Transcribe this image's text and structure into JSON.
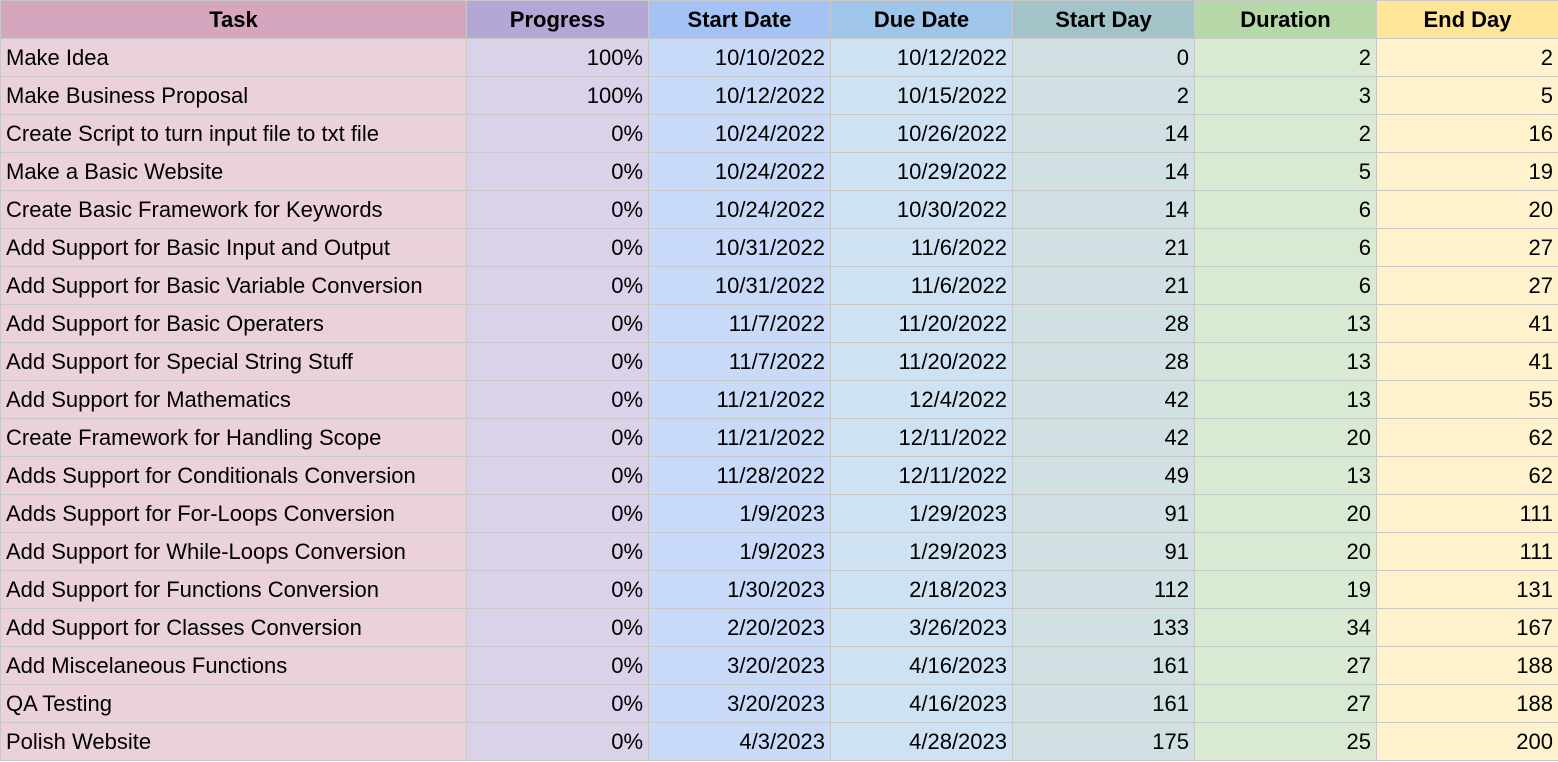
{
  "colors": {
    "task_header": "#d5a6bd",
    "progress_header": "#b4a7d6",
    "start_date_header": "#a4c2f4",
    "due_date_header": "#9fc5e8",
    "start_day_header": "#a2c4c9",
    "duration_header": "#b6d7a8",
    "end_day_header": "#ffe599",
    "task_cells": "#ead1dc",
    "progress_cells": "#d9d2e9",
    "start_date_cells": "#c9daf8",
    "due_date_cells": "#cfe2f3",
    "start_day_cells": "#d0e0e3",
    "duration_cells": "#d9ead3",
    "end_day_cells": "#fff2cc"
  },
  "headers": [
    "Task",
    "Progress",
    "Start Date",
    "Due Date",
    "Start Day",
    "Duration",
    "End Day"
  ],
  "rows": [
    [
      "Make Idea",
      "100%",
      "10/10/2022",
      "10/12/2022",
      "0",
      "2",
      "2"
    ],
    [
      "Make Business Proposal",
      "100%",
      "10/12/2022",
      "10/15/2022",
      "2",
      "3",
      "5"
    ],
    [
      "Create Script to turn input file to txt file",
      "0%",
      "10/24/2022",
      "10/26/2022",
      "14",
      "2",
      "16"
    ],
    [
      "Make a Basic Website",
      "0%",
      "10/24/2022",
      "10/29/2022",
      "14",
      "5",
      "19"
    ],
    [
      "Create Basic Framework for Keywords",
      "0%",
      "10/24/2022",
      "10/30/2022",
      "14",
      "6",
      "20"
    ],
    [
      "Add Support for Basic Input and Output",
      "0%",
      "10/31/2022",
      "11/6/2022",
      "21",
      "6",
      "27"
    ],
    [
      "Add Support for Basic Variable Conversion",
      "0%",
      "10/31/2022",
      "11/6/2022",
      "21",
      "6",
      "27"
    ],
    [
      "Add Support for Basic Operaters",
      "0%",
      "11/7/2022",
      "11/20/2022",
      "28",
      "13",
      "41"
    ],
    [
      "Add Support for Special String Stuff",
      "0%",
      "11/7/2022",
      "11/20/2022",
      "28",
      "13",
      "41"
    ],
    [
      "Add Support for Mathematics",
      "0%",
      "11/21/2022",
      "12/4/2022",
      "42",
      "13",
      "55"
    ],
    [
      "Create Framework for Handling Scope",
      "0%",
      "11/21/2022",
      "12/11/2022",
      "42",
      "20",
      "62"
    ],
    [
      "Adds Support for Conditionals Conversion",
      "0%",
      "11/28/2022",
      "12/11/2022",
      "49",
      "13",
      "62"
    ],
    [
      "Adds Support for For-Loops Conversion",
      "0%",
      "1/9/2023",
      "1/29/2023",
      "91",
      "20",
      "111"
    ],
    [
      "Add Support for While-Loops Conversion",
      "0%",
      "1/9/2023",
      "1/29/2023",
      "91",
      "20",
      "111"
    ],
    [
      "Add Support for Functions Conversion",
      "0%",
      "1/30/2023",
      "2/18/2023",
      "112",
      "19",
      "131"
    ],
    [
      "Add Support for Classes Conversion",
      "0%",
      "2/20/2023",
      "3/26/2023",
      "133",
      "34",
      "167"
    ],
    [
      "Add Miscelaneous Functions",
      "0%",
      "3/20/2023",
      "4/16/2023",
      "161",
      "27",
      "188"
    ],
    [
      "QA Testing",
      "0%",
      "3/20/2023",
      "4/16/2023",
      "161",
      "27",
      "188"
    ],
    [
      "Polish Website",
      "0%",
      "4/3/2023",
      "4/28/2023",
      "175",
      "25",
      "200"
    ]
  ]
}
